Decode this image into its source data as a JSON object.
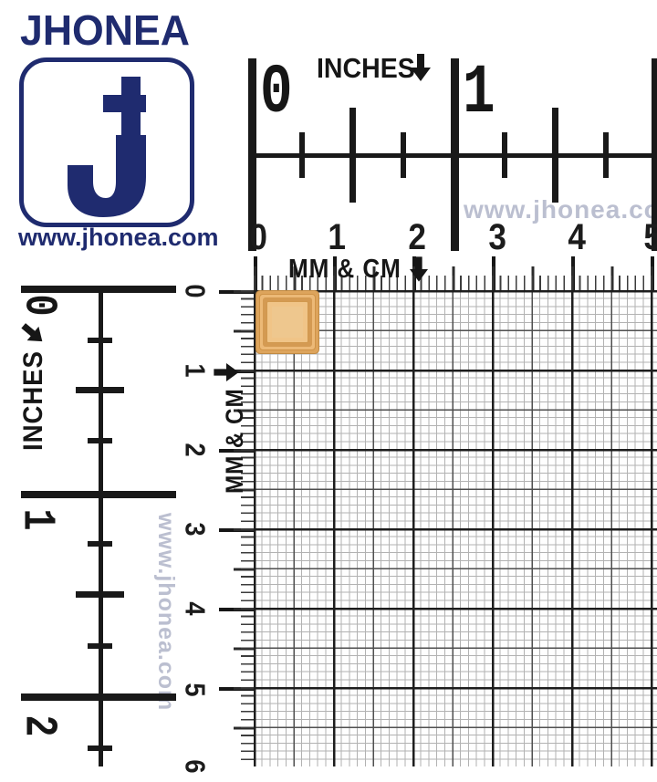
{
  "brand": {
    "title": "JHONEA",
    "website": "www.jhonea.com",
    "monogram_icon": "j-cross-monogram",
    "color_navy": "#1f2b6f"
  },
  "watermarks": {
    "horizontal_text": "www.jhonea.com",
    "vertical_text": "www.jhonea.com",
    "color": "#b8bcce"
  },
  "rulers": {
    "top_inches": {
      "label": "INCHES",
      "arrow": "down",
      "numbers": [
        "0",
        "1"
      ]
    },
    "top_mm": {
      "label": "MM & CM",
      "arrow": "down",
      "numbers": [
        "0",
        "1",
        "2",
        "3",
        "4",
        "5"
      ]
    },
    "left_inches": {
      "label": "INCHES",
      "arrow": "right",
      "numbers": [
        "0",
        "1",
        "2"
      ]
    },
    "left_mm": {
      "label": "MM & CM",
      "arrow": "right",
      "numbers": [
        "0",
        "1",
        "2",
        "3",
        "4",
        "5",
        "6"
      ]
    }
  },
  "grid": {
    "minor_step_mm": 1,
    "medium_step_mm": 5,
    "major_step_mm": 10,
    "minor_color": "#b2b2b2",
    "medium_color": "#4f4f4f",
    "major_color": "#1d1d1d"
  },
  "product": {
    "description": "square gold bead on grid",
    "colors": {
      "outer": "#dda45c",
      "ring_light": "#ecb977",
      "ring_dark": "#d49a52",
      "inner": "#f0c487",
      "center": "#eec78e"
    }
  }
}
